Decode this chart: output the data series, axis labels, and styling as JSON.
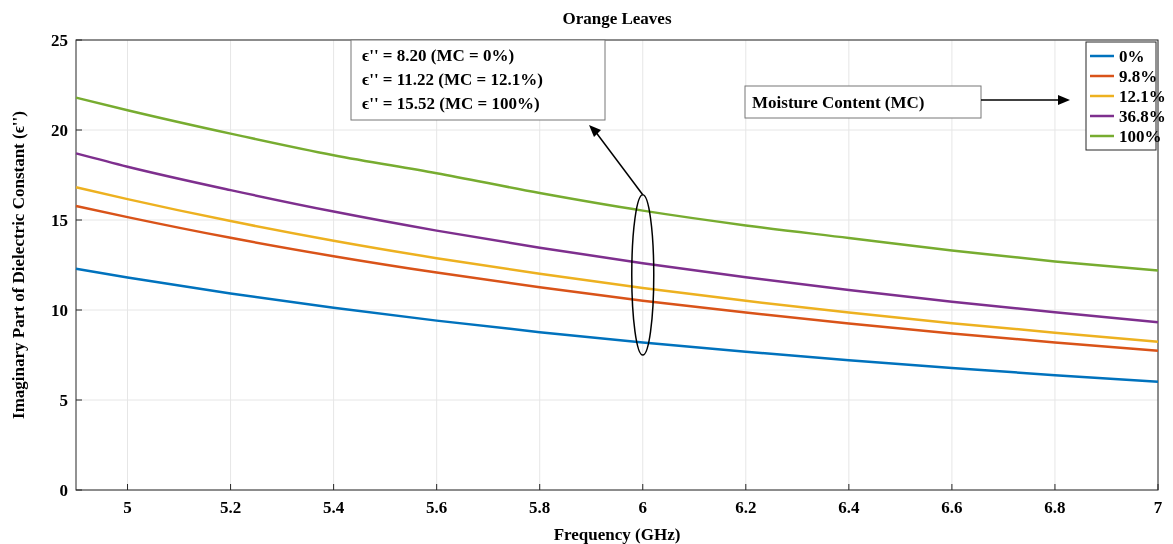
{
  "chart_data": {
    "type": "line",
    "title": "Orange Leaves",
    "xlabel": "Frequency (GHz)",
    "ylabel": "Imaginary Part of Dielectric Constant (ϵ'')",
    "x": [
      4.9,
      5,
      5.2,
      5.4,
      5.6,
      5.8,
      6,
      6.2,
      6.4,
      6.6,
      6.8,
      7
    ],
    "series": [
      {
        "name": "0%",
        "color": "#0072bd",
        "values": [
          12.29,
          11.81,
          10.92,
          10.12,
          9.41,
          8.77,
          8.2,
          7.68,
          7.21,
          6.78,
          6.38,
          6.02
        ]
      },
      {
        "name": "9.8%",
        "color": "#d95319",
        "values": [
          15.78,
          15.16,
          14.01,
          12.99,
          12.08,
          11.26,
          10.52,
          9.86,
          9.25,
          8.7,
          8.19,
          7.73
        ]
      },
      {
        "name": "12.1%",
        "color": "#edb120",
        "values": [
          16.82,
          16.16,
          14.94,
          13.85,
          12.88,
          12.01,
          11.22,
          10.51,
          9.86,
          9.27,
          8.74,
          8.24
        ]
      },
      {
        "name": "36.8%",
        "color": "#7e2f8e",
        "values": [
          18.7,
          17.96,
          16.66,
          15.47,
          14.41,
          13.46,
          12.6,
          11.82,
          11.11,
          10.46,
          9.87,
          9.32
        ]
      },
      {
        "name": "100%",
        "color": "#77ac30",
        "values": [
          21.8,
          21.1,
          19.8,
          18.6,
          17.6,
          16.5,
          15.52,
          14.7,
          14.0,
          13.3,
          12.7,
          12.2
        ]
      }
    ],
    "xlim": [
      4.9,
      7
    ],
    "xticks": [
      5,
      5.2,
      5.4,
      5.6,
      5.8,
      6,
      6.2,
      6.4,
      6.6,
      6.8,
      7
    ],
    "ylim": [
      0,
      25
    ],
    "yticks": [
      0,
      5,
      10,
      15,
      20,
      25
    ],
    "grid": true,
    "legend": "top right",
    "line_style": "solid",
    "marker": "none",
    "annotations": [
      "ϵ'' = 8.20 (MC = 0%)",
      "ϵ'' = 11.22 (MC = 12.1%)",
      "ϵ'' = 15.52 (MC = 100%)",
      "Moisture Content (MC)"
    ]
  }
}
